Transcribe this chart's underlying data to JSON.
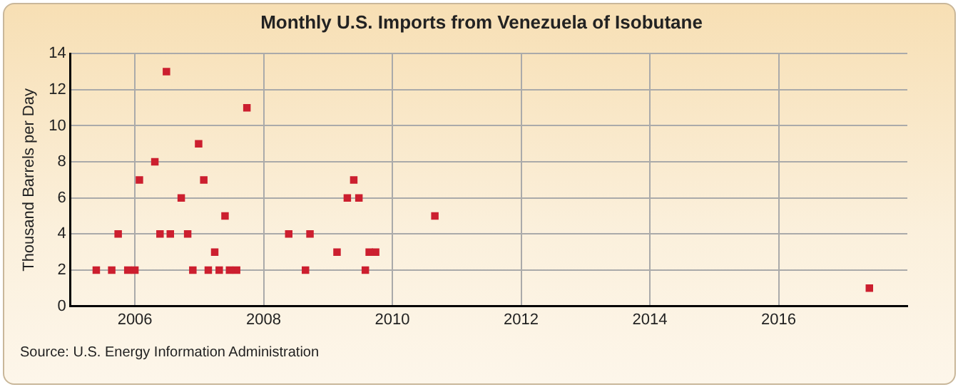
{
  "chart_data": {
    "type": "scatter",
    "title": "Monthly U.S. Imports from Venezuela of Isobutane",
    "ylabel": "Thousand Barrels per Day",
    "x": [
      2005.4,
      2005.64,
      2005.74,
      2005.89,
      2006.0,
      2006.07,
      2006.31,
      2006.39,
      2006.49,
      2006.55,
      2006.72,
      2006.82,
      2006.9,
      2006.99,
      2007.07,
      2007.14,
      2007.24,
      2007.31,
      2007.4,
      2007.47,
      2007.58,
      2007.74,
      2008.39,
      2008.65,
      2008.72,
      2009.14,
      2009.3,
      2009.4,
      2009.48,
      2009.58,
      2009.64,
      2009.74,
      2010.66,
      2017.41
    ],
    "series": [
      {
        "color": "#cc1f2f",
        "values": [
          2,
          2,
          4,
          2,
          2,
          7,
          8,
          4,
          13,
          4,
          6,
          4,
          2,
          9,
          7,
          2,
          3,
          2,
          5,
          2,
          2,
          11,
          4,
          2,
          4,
          3,
          6,
          7,
          6,
          2,
          3,
          3,
          5,
          1
        ]
      }
    ],
    "xlim": [
      2005,
      2018
    ],
    "xticks": [
      2006,
      2008,
      2010,
      2012,
      2014,
      2016
    ],
    "ylim": [
      0,
      14
    ],
    "yticks": [
      0,
      2,
      4,
      6,
      8,
      10,
      12,
      14
    ],
    "grid": true,
    "legend": false,
    "marker": "square",
    "annotations": [
      "Source: U.S. Energy Information Administration"
    ]
  }
}
